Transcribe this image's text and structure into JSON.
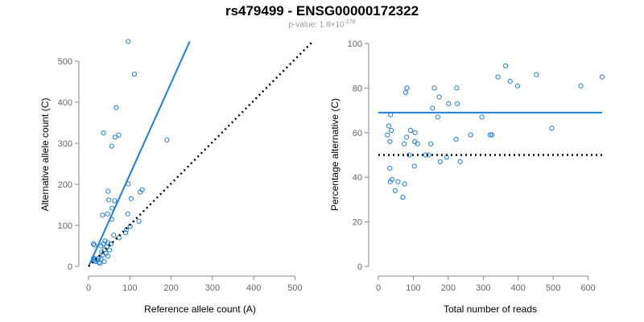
{
  "title": "rs479499 - ENSG00000172322",
  "subtitle": {
    "prefix": "p-value: 1.8×10",
    "exponent": "-278"
  },
  "colors": {
    "accent": "#1f7fd3",
    "reference": "#000000",
    "axis": "#888888"
  },
  "chart_data": [
    {
      "type": "scatter",
      "xlabel": "Reference allele count (A)",
      "ylabel": "Alternative allele count (C)",
      "xlim": [
        0,
        540
      ],
      "ylim": [
        0,
        545
      ],
      "xticks": [
        0,
        100,
        200,
        300,
        400,
        500
      ],
      "yticks": [
        0,
        100,
        200,
        300,
        400,
        500
      ],
      "lines": [
        {
          "style": "solid",
          "from": [
            0,
            0
          ],
          "to": [
            245,
            548
          ]
        },
        {
          "style": "dotted",
          "from": [
            0,
            0
          ],
          "to": [
            540,
            545
          ]
        }
      ],
      "points": [
        [
          96,
          548
        ],
        [
          111,
          468
        ],
        [
          67,
          387
        ],
        [
          36,
          325
        ],
        [
          73,
          320
        ],
        [
          64,
          315
        ],
        [
          56,
          293
        ],
        [
          190,
          308
        ],
        [
          47,
          183
        ],
        [
          96,
          201
        ],
        [
          130,
          187
        ],
        [
          125,
          181
        ],
        [
          103,
          165
        ],
        [
          63,
          160
        ],
        [
          49,
          162
        ],
        [
          57,
          142
        ],
        [
          34,
          125
        ],
        [
          46,
          128
        ],
        [
          95,
          128
        ],
        [
          56,
          115
        ],
        [
          122,
          110
        ],
        [
          101,
          98
        ],
        [
          61,
          76
        ],
        [
          74,
          70
        ],
        [
          92,
          90
        ],
        [
          90,
          82
        ],
        [
          12,
          55
        ],
        [
          14,
          52
        ],
        [
          40,
          62
        ],
        [
          47,
          58
        ],
        [
          36,
          55
        ],
        [
          54,
          55
        ],
        [
          30,
          50
        ],
        [
          44,
          48
        ],
        [
          39,
          41
        ],
        [
          51,
          40
        ],
        [
          32,
          35
        ],
        [
          42,
          32
        ],
        [
          35,
          28
        ],
        [
          47,
          25
        ],
        [
          24,
          20
        ],
        [
          30,
          18
        ],
        [
          22,
          16
        ],
        [
          14,
          14
        ],
        [
          18,
          12
        ],
        [
          25,
          10
        ],
        [
          38,
          12
        ],
        [
          28,
          8
        ],
        [
          12,
          20
        ],
        [
          16,
          18
        ]
      ]
    },
    {
      "type": "scatter",
      "xlabel": "Total number of reads",
      "ylabel": "Percentage alternative (C)",
      "xlim": [
        0,
        640
      ],
      "ylim": [
        0,
        100
      ],
      "xticks": [
        0,
        100,
        200,
        300,
        400,
        500,
        600
      ],
      "yticks": [
        0,
        20,
        40,
        60,
        80,
        100
      ],
      "lines": [
        {
          "style": "solid",
          "y": 69
        },
        {
          "style": "dotted",
          "y": 50
        }
      ],
      "points": [
        [
          364,
          90
        ],
        [
          342,
          85
        ],
        [
          452,
          86
        ],
        [
          640,
          85
        ],
        [
          579,
          81
        ],
        [
          398,
          81
        ],
        [
          377,
          83
        ],
        [
          160,
          80
        ],
        [
          224,
          80
        ],
        [
          82,
          80
        ],
        [
          78,
          78
        ],
        [
          174,
          76
        ],
        [
          226,
          73
        ],
        [
          201,
          73
        ],
        [
          155,
          71
        ],
        [
          170,
          67
        ],
        [
          296,
          67
        ],
        [
          35,
          68
        ],
        [
          30,
          63
        ],
        [
          37,
          61
        ],
        [
          92,
          61
        ],
        [
          81,
          58
        ],
        [
          105,
          60
        ],
        [
          26,
          59
        ],
        [
          264,
          59
        ],
        [
          320,
          59
        ],
        [
          325,
          59
        ],
        [
          104,
          56
        ],
        [
          112,
          55
        ],
        [
          222,
          57
        ],
        [
          74,
          55
        ],
        [
          33,
          56
        ],
        [
          496,
          62
        ],
        [
          150,
          55
        ],
        [
          144,
          50
        ],
        [
          88,
          50
        ],
        [
          135,
          50
        ],
        [
          195,
          49
        ],
        [
          177,
          47
        ],
        [
          234,
          47
        ],
        [
          103,
          45
        ],
        [
          33,
          44
        ],
        [
          56,
          38
        ],
        [
          39,
          39
        ],
        [
          75,
          37
        ],
        [
          48,
          34
        ],
        [
          34,
          38
        ],
        [
          70,
          31
        ]
      ]
    }
  ]
}
